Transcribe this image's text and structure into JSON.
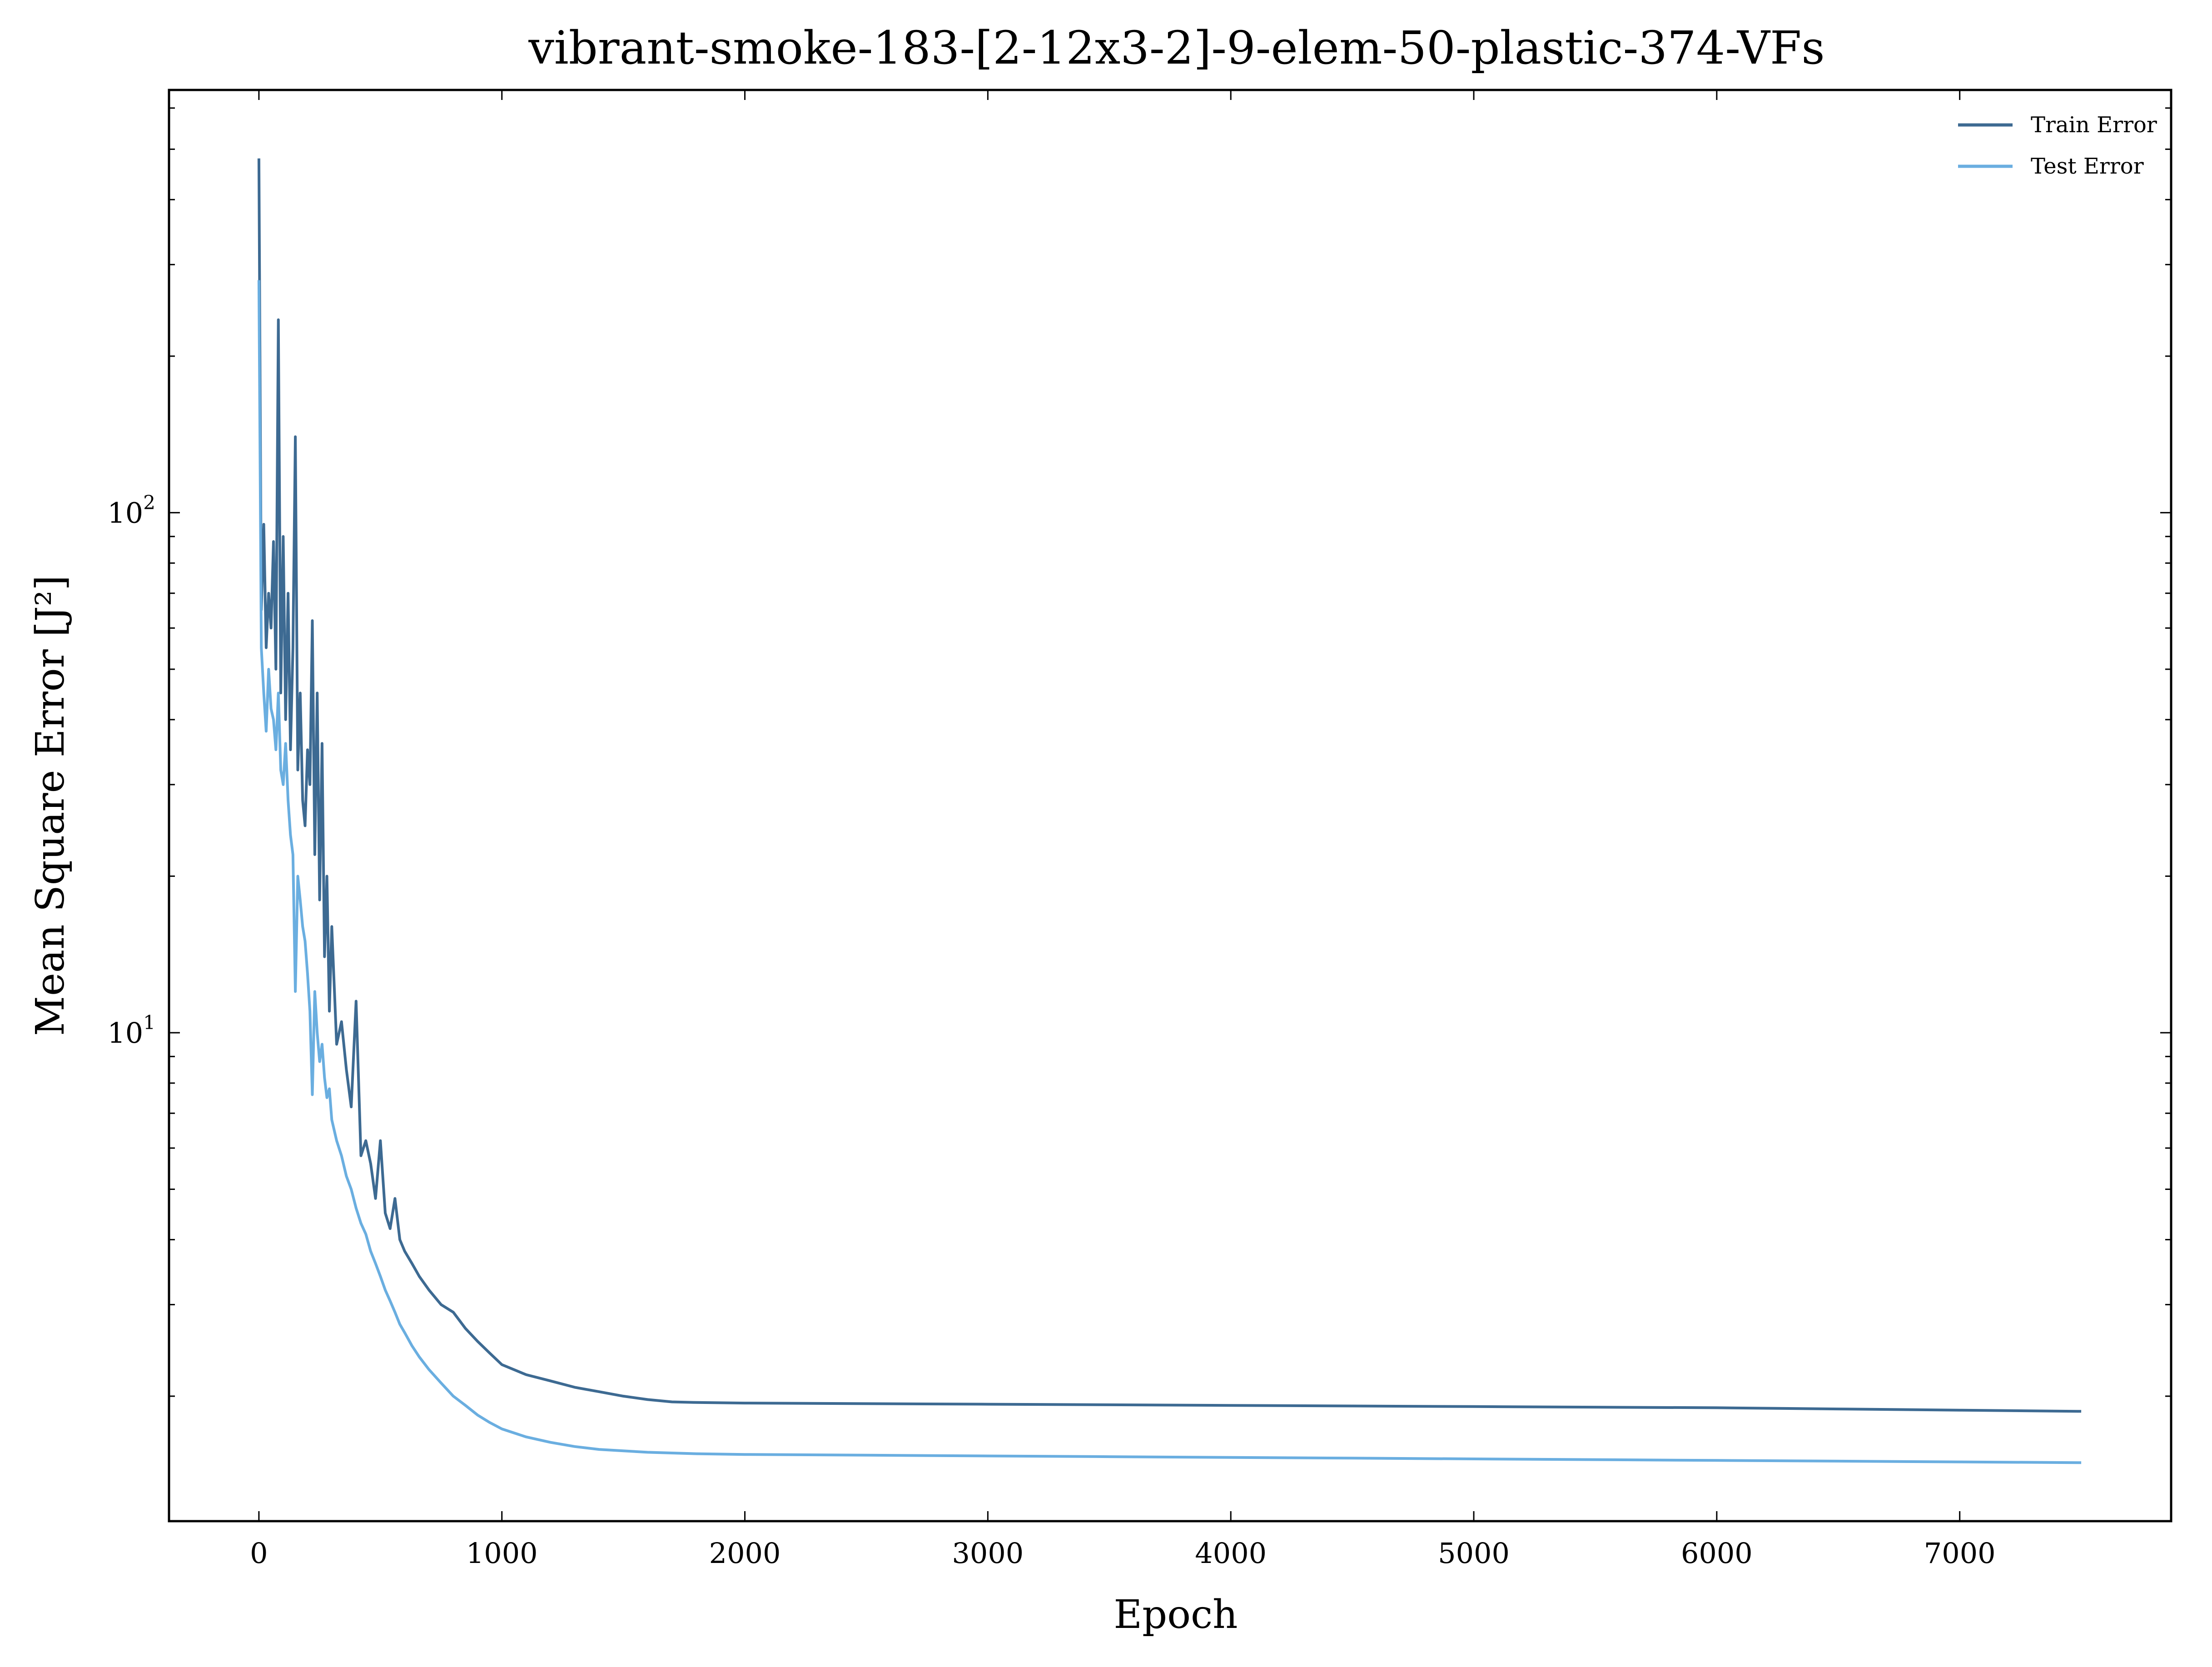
{
  "chart_data": {
    "type": "line",
    "title": "vibrant-smoke-183-[2-12x3-2]-9-elem-50-plastic-374-VFs",
    "xlabel": "Epoch",
    "ylabel": "Mean Square Error [J²]",
    "xlim": [
      -370,
      7870
    ],
    "ylim": [
      1.15,
      650
    ],
    "yscale": "log",
    "xticks": [
      0,
      1000,
      2000,
      3000,
      4000,
      5000,
      6000,
      7000
    ],
    "xtick_labels": [
      "0",
      "1000",
      "2000",
      "3000",
      "4000",
      "5000",
      "6000",
      "7000"
    ],
    "yticks": [
      10,
      100
    ],
    "ytick_labels": [
      {
        "base": "10",
        "exp": "1"
      },
      {
        "base": "10",
        "exp": "2"
      }
    ],
    "grid": false,
    "legend_position": "top-right",
    "series": [
      {
        "name": "Train Error",
        "color": "#3d6a92",
        "x": [
          0,
          10,
          20,
          30,
          40,
          50,
          60,
          70,
          80,
          90,
          100,
          110,
          120,
          130,
          140,
          150,
          160,
          170,
          180,
          190,
          200,
          210,
          220,
          230,
          240,
          250,
          260,
          270,
          280,
          290,
          300,
          320,
          340,
          360,
          380,
          400,
          420,
          440,
          460,
          480,
          500,
          520,
          540,
          560,
          580,
          600,
          630,
          660,
          700,
          750,
          800,
          850,
          900,
          950,
          1000,
          1100,
          1200,
          1300,
          1400,
          1500,
          1600,
          1700,
          1800,
          2000,
          2500,
          3000,
          3500,
          4000,
          4500,
          5000,
          5500,
          6000,
          6500,
          7000,
          7500
        ],
        "y": [
          480,
          65,
          95,
          55,
          70,
          60,
          88,
          50,
          235,
          45,
          90,
          40,
          70,
          35,
          55,
          140,
          32,
          45,
          28,
          25,
          35,
          30,
          62,
          22,
          45,
          18,
          36,
          14,
          20,
          11,
          16,
          9.5,
          10.5,
          8.5,
          7.2,
          11.5,
          5.8,
          6.2,
          5.6,
          4.8,
          6.2,
          4.5,
          4.2,
          4.8,
          4.0,
          3.8,
          3.6,
          3.4,
          3.2,
          3.0,
          2.9,
          2.7,
          2.55,
          2.42,
          2.3,
          2.2,
          2.14,
          2.08,
          2.04,
          2.0,
          1.97,
          1.95,
          1.945,
          1.94,
          1.935,
          1.93,
          1.925,
          1.92,
          1.915,
          1.91,
          1.905,
          1.9,
          1.89,
          1.88,
          1.87
        ]
      },
      {
        "name": "Test Error",
        "color": "#6aaee0",
        "x": [
          0,
          10,
          20,
          30,
          40,
          50,
          60,
          70,
          80,
          90,
          100,
          110,
          120,
          130,
          140,
          150,
          160,
          170,
          180,
          190,
          200,
          210,
          220,
          230,
          240,
          250,
          260,
          270,
          280,
          290,
          300,
          320,
          340,
          360,
          380,
          400,
          420,
          440,
          460,
          480,
          500,
          520,
          540,
          560,
          580,
          600,
          630,
          660,
          700,
          750,
          800,
          850,
          900,
          950,
          1000,
          1100,
          1200,
          1300,
          1400,
          1500,
          1600,
          1700,
          1800,
          2000,
          2500,
          3000,
          3500,
          4000,
          4500,
          5000,
          5500,
          6000,
          6500,
          7000,
          7500
        ],
        "y": [
          280,
          55,
          45,
          38,
          50,
          42,
          40,
          35,
          45,
          32,
          30,
          36,
          28,
          24,
          22,
          12,
          20,
          18,
          16,
          15,
          13,
          11,
          7.6,
          12,
          10,
          8.8,
          9.5,
          8.2,
          7.5,
          7.8,
          6.8,
          6.2,
          5.8,
          5.3,
          5.0,
          4.6,
          4.3,
          4.1,
          3.8,
          3.6,
          3.4,
          3.2,
          3.05,
          2.9,
          2.75,
          2.65,
          2.5,
          2.38,
          2.25,
          2.12,
          2.0,
          1.92,
          1.84,
          1.78,
          1.73,
          1.67,
          1.63,
          1.6,
          1.58,
          1.57,
          1.56,
          1.555,
          1.55,
          1.545,
          1.54,
          1.535,
          1.53,
          1.525,
          1.52,
          1.515,
          1.51,
          1.505,
          1.5,
          1.495,
          1.49
        ]
      }
    ]
  }
}
